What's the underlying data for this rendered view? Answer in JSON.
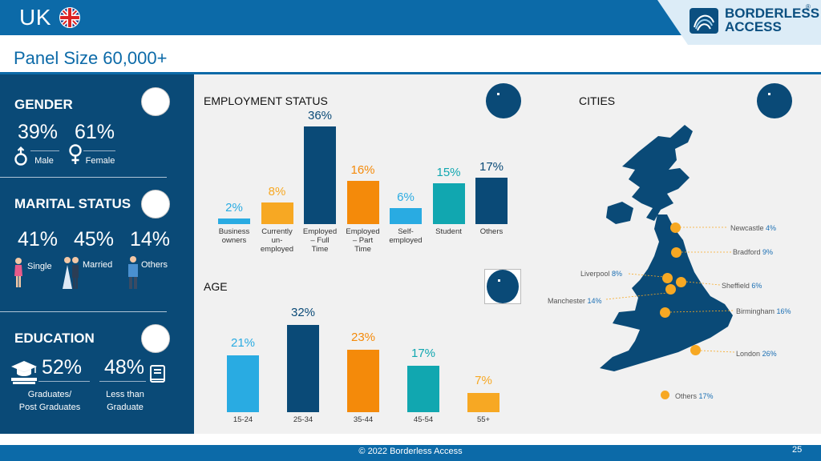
{
  "header": {
    "country": "UK",
    "page_title": "Panel Size 60,000+",
    "logo_line1": "BORDERLESS",
    "logo_line2": "ACCESS",
    "logo_reg": "®"
  },
  "gender": {
    "heading": "GENDER",
    "male_pct": "39%",
    "female_pct": "61%",
    "male_label": "Male",
    "female_label": "Female"
  },
  "marital": {
    "heading": "MARITAL STATUS",
    "single_pct": "41%",
    "married_pct": "45%",
    "others_pct": "14%",
    "single_label": "Single",
    "married_label": "Married",
    "others_label": "Others"
  },
  "education": {
    "heading": "EDUCATION",
    "grad_pct": "52%",
    "less_pct": "48%",
    "grad_label_1": "Graduates/",
    "grad_label_2": "Post Graduates",
    "less_label_1": "Less than",
    "less_label_2": "Graduate"
  },
  "employment": {
    "title": "EMPLOYMENT STATUS",
    "bars": [
      {
        "label_lines": [
          "Business",
          "owners"
        ],
        "value": 2,
        "text": "2%",
        "color": "#29abe2"
      },
      {
        "label_lines": [
          "Currently",
          "un-",
          "employed"
        ],
        "value": 8,
        "text": "8%",
        "color": "#f7a823"
      },
      {
        "label_lines": [
          "Employed",
          "– Full",
          "Time"
        ],
        "value": 36,
        "text": "36%",
        "color": "#0a4a77"
      },
      {
        "label_lines": [
          "Employed",
          "– Part",
          "Time"
        ],
        "value": 16,
        "text": "16%",
        "color": "#f48a0a"
      },
      {
        "label_lines": [
          "Self-",
          "employed"
        ],
        "value": 6,
        "text": "6%",
        "color": "#29abe2"
      },
      {
        "label_lines": [
          "Student"
        ],
        "value": 15,
        "text": "15%",
        "color": "#11a7b0"
      },
      {
        "label_lines": [
          "Others"
        ],
        "value": 17,
        "text": "17%",
        "color": "#0a4a77"
      }
    ]
  },
  "age": {
    "title": "AGE",
    "bars": [
      {
        "label": "15-24",
        "value": 21,
        "text": "21%",
        "color": "#29abe2"
      },
      {
        "label": "25-34",
        "value": 32,
        "text": "32%",
        "color": "#0a4a77"
      },
      {
        "label": "35-44",
        "value": 23,
        "text": "23%",
        "color": "#f48a0a"
      },
      {
        "label": "45-54",
        "value": 17,
        "text": "17%",
        "color": "#11a7b0"
      },
      {
        "label": "55+",
        "value": 7,
        "text": "7%",
        "color": "#f7a823"
      }
    ]
  },
  "cities": {
    "title": "CITIES",
    "list": [
      {
        "name": "Newcastle",
        "pct": "4%"
      },
      {
        "name": "Bradford",
        "pct": "9%"
      },
      {
        "name": "Liverpool",
        "pct": "8%"
      },
      {
        "name": "Sheffield",
        "pct": "6%"
      },
      {
        "name": "Manchester",
        "pct": "14%"
      },
      {
        "name": "Birmingham",
        "pct": "16%"
      },
      {
        "name": "London",
        "pct": "26%"
      },
      {
        "name": "Others",
        "pct": "17%"
      }
    ]
  },
  "footer": {
    "copyright": "© 2022 Borderless Access",
    "page": "25"
  },
  "colors": {
    "brand_blue": "#0c6aa8",
    "navy": "#0a4a77",
    "orange": "#f48a0a",
    "yellow": "#f7a823",
    "light_blue": "#29abe2",
    "teal": "#11a7b0"
  }
}
